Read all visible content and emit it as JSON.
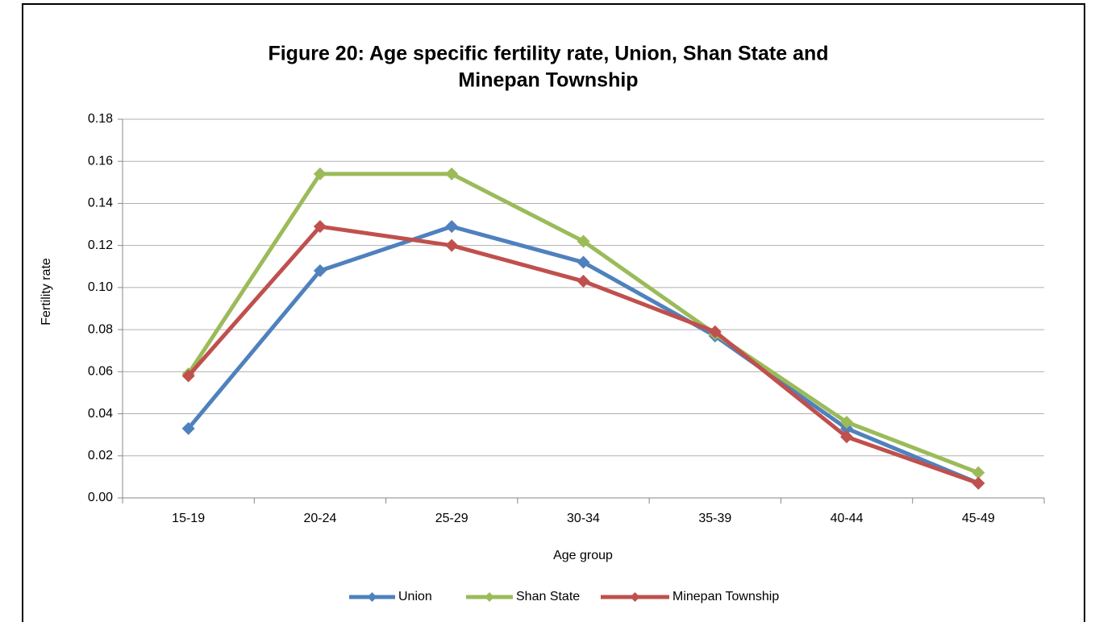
{
  "chart_data": {
    "type": "line",
    "title": [
      "Figure 20: Age specific fertility rate, Union, Shan State and",
      "Minepan Township"
    ],
    "x_label": "Age group",
    "y_label": "Fertility rate",
    "categories": [
      "15-19",
      "20-24",
      "25-29",
      "30-34",
      "35-39",
      "40-44",
      "45-49"
    ],
    "series": [
      {
        "name": "Union",
        "color": "#4f81bd",
        "values": [
          0.033,
          0.108,
          0.129,
          0.112,
          0.077,
          0.033,
          0.007
        ]
      },
      {
        "name": "Shan State",
        "color": "#9bbb59",
        "values": [
          0.059,
          0.154,
          0.154,
          0.122,
          0.078,
          0.036,
          0.012
        ]
      },
      {
        "name": "Minepan Township",
        "color": "#c0504d",
        "values": [
          0.058,
          0.129,
          0.12,
          0.103,
          0.079,
          0.029,
          0.007
        ]
      }
    ],
    "ylim": [
      0,
      0.18
    ],
    "yticks": [
      {
        "value": 0,
        "label": "0.00"
      },
      {
        "value": 0.02,
        "label": "0.02"
      },
      {
        "value": 0.04,
        "label": "0.04"
      },
      {
        "value": 0.06,
        "label": "0.06"
      },
      {
        "value": 0.08,
        "label": "0.08"
      },
      {
        "value": 0.1,
        "label": "0.10"
      },
      {
        "value": 0.12,
        "label": "0.12"
      },
      {
        "value": 0.14,
        "label": "0.14"
      },
      {
        "value": 0.16,
        "label": "0.16"
      },
      {
        "value": 0.18,
        "label": "0.18"
      }
    ],
    "grid": true,
    "legend": "bottom"
  }
}
